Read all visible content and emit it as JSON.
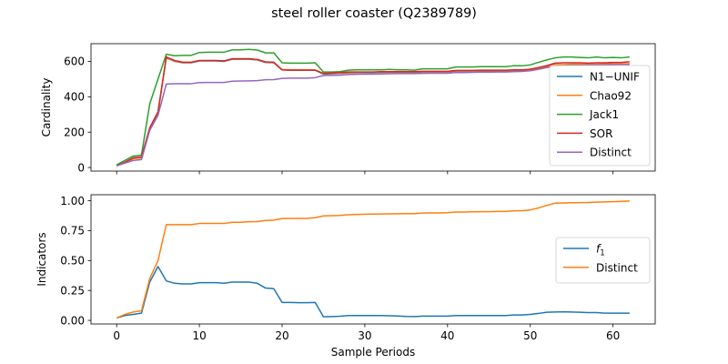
{
  "figure_title": "steel roller coaster (Q2389789)",
  "colors": {
    "blue": "#1f77b4",
    "orange": "#ff7f0e",
    "green": "#2ca02c",
    "red": "#d62728",
    "purple": "#9467bd"
  },
  "chart_data": [
    {
      "type": "line",
      "ylabel": "Cardinality",
      "xlabel": "",
      "xlim": [
        -3.1,
        65.1
      ],
      "ylim": [
        -20,
        700
      ],
      "xticks": [
        0,
        10,
        20,
        30,
        40,
        50,
        60
      ],
      "yticks": [
        0,
        200,
        400,
        600
      ],
      "ytick_labels": [
        "0",
        "200",
        "400",
        "600"
      ],
      "show_xtick_labels": false,
      "grid": false,
      "legend_position": "center-right",
      "x": [
        0,
        1,
        2,
        3,
        4,
        5,
        6,
        7,
        8,
        9,
        10,
        11,
        12,
        13,
        14,
        15,
        16,
        17,
        18,
        19,
        20,
        21,
        22,
        23,
        24,
        25,
        26,
        27,
        28,
        29,
        30,
        31,
        32,
        33,
        34,
        35,
        36,
        37,
        38,
        39,
        40,
        41,
        42,
        43,
        44,
        45,
        46,
        47,
        48,
        49,
        50,
        51,
        52,
        53,
        54,
        55,
        56,
        57,
        58,
        59,
        60,
        61,
        62
      ],
      "series": [
        {
          "name": "N1−UNIF",
          "color": "#1f77b4",
          "values": [
            10,
            30,
            50,
            55,
            220,
            310,
            620,
            600,
            592,
            592,
            602,
            602,
            602,
            600,
            612,
            612,
            612,
            608,
            594,
            592,
            552,
            550,
            550,
            550,
            550,
            528,
            530,
            532,
            535,
            536,
            537,
            537,
            538,
            538,
            538,
            538,
            538,
            540,
            540,
            540,
            540,
            545,
            545,
            545,
            546,
            546,
            546,
            546,
            548,
            548,
            552,
            560,
            570,
            580,
            580,
            582,
            582,
            582,
            582,
            584,
            584,
            584,
            585
          ]
        },
        {
          "name": "Chao92",
          "color": "#ff7f0e",
          "values": [
            10,
            30,
            50,
            55,
            222,
            312,
            622,
            602,
            594,
            594,
            604,
            604,
            604,
            602,
            614,
            614,
            614,
            610,
            596,
            594,
            554,
            552,
            552,
            552,
            552,
            530,
            532,
            534,
            537,
            538,
            539,
            539,
            540,
            540,
            540,
            540,
            540,
            542,
            542,
            542,
            542,
            547,
            547,
            547,
            548,
            548,
            548,
            548,
            550,
            550,
            554,
            562,
            572,
            582,
            582,
            584,
            584,
            584,
            584,
            586,
            586,
            586,
            587
          ]
        },
        {
          "name": "Jack1",
          "color": "#2ca02c",
          "values": [
            15,
            40,
            65,
            70,
            360,
            500,
            640,
            632,
            634,
            634,
            650,
            652,
            652,
            652,
            665,
            665,
            668,
            664,
            648,
            648,
            592,
            590,
            590,
            590,
            592,
            540,
            540,
            542,
            550,
            552,
            552,
            552,
            552,
            555,
            552,
            552,
            550,
            558,
            558,
            558,
            558,
            568,
            568,
            568,
            570,
            570,
            570,
            570,
            575,
            575,
            580,
            595,
            608,
            620,
            625,
            625,
            622,
            620,
            625,
            620,
            622,
            620,
            625
          ]
        },
        {
          "name": "SOR",
          "color": "#d62728",
          "values": [
            10,
            30,
            55,
            60,
            225,
            315,
            625,
            605,
            595,
            595,
            605,
            605,
            605,
            603,
            615,
            615,
            615,
            611,
            597,
            595,
            552,
            550,
            550,
            550,
            550,
            532,
            534,
            536,
            540,
            540,
            540,
            540,
            542,
            542,
            542,
            542,
            542,
            544,
            544,
            544,
            544,
            549,
            549,
            549,
            550,
            550,
            550,
            550,
            552,
            552,
            556,
            565,
            576,
            590,
            592,
            592,
            592,
            590,
            592,
            592,
            594,
            594,
            598
          ]
        },
        {
          "name": "Distinct",
          "color": "#9467bd",
          "values": [
            10,
            25,
            40,
            45,
            210,
            295,
            472,
            474,
            474,
            474,
            480,
            481,
            481,
            481,
            488,
            489,
            490,
            491,
            496,
            497,
            504,
            505,
            505,
            505,
            508,
            520,
            521,
            522,
            526,
            527,
            528,
            528,
            529,
            530,
            531,
            531,
            531,
            532,
            533,
            533,
            533,
            537,
            537,
            538,
            539,
            539,
            540,
            540,
            542,
            543,
            547,
            555,
            565,
            573,
            575,
            577,
            578,
            579,
            580,
            580,
            581,
            582,
            582
          ]
        }
      ]
    },
    {
      "type": "line",
      "ylabel": "Indicators",
      "xlabel": "Sample Periods",
      "xlim": [
        -3.1,
        65.1
      ],
      "ylim": [
        -0.03,
        1.05
      ],
      "xticks": [
        0,
        10,
        20,
        30,
        40,
        50,
        60
      ],
      "xtick_labels": [
        "0",
        "10",
        "20",
        "30",
        "40",
        "50",
        "60"
      ],
      "yticks": [
        0.0,
        0.25,
        0.5,
        0.75,
        1.0
      ],
      "ytick_labels": [
        "0.00",
        "0.25",
        "0.50",
        "0.75",
        "1.00"
      ],
      "grid": false,
      "legend_position": "center-right",
      "x": [
        0,
        1,
        2,
        3,
        4,
        5,
        6,
        7,
        8,
        9,
        10,
        11,
        12,
        13,
        14,
        15,
        16,
        17,
        18,
        19,
        20,
        21,
        22,
        23,
        24,
        25,
        26,
        27,
        28,
        29,
        30,
        31,
        32,
        33,
        34,
        35,
        36,
        37,
        38,
        39,
        40,
        41,
        42,
        43,
        44,
        45,
        46,
        47,
        48,
        49,
        50,
        51,
        52,
        53,
        54,
        55,
        56,
        57,
        58,
        59,
        60,
        61,
        62
      ],
      "series": [
        {
          "name": "f1",
          "color": "#1f77b4",
          "values": [
            0.02,
            0.04,
            0.05,
            0.06,
            0.32,
            0.45,
            0.33,
            0.31,
            0.305,
            0.305,
            0.315,
            0.315,
            0.315,
            0.31,
            0.32,
            0.32,
            0.32,
            0.31,
            0.27,
            0.265,
            0.15,
            0.15,
            0.148,
            0.148,
            0.15,
            0.03,
            0.032,
            0.035,
            0.04,
            0.04,
            0.04,
            0.04,
            0.04,
            0.038,
            0.037,
            0.033,
            0.032,
            0.036,
            0.036,
            0.036,
            0.036,
            0.04,
            0.04,
            0.04,
            0.04,
            0.04,
            0.04,
            0.04,
            0.045,
            0.045,
            0.05,
            0.058,
            0.068,
            0.07,
            0.072,
            0.07,
            0.068,
            0.065,
            0.065,
            0.06,
            0.06,
            0.06,
            0.06
          ]
        },
        {
          "name": "Distinct",
          "color": "#ff7f0e",
          "values": [
            0.02,
            0.05,
            0.07,
            0.08,
            0.35,
            0.5,
            0.8,
            0.8,
            0.8,
            0.8,
            0.81,
            0.81,
            0.81,
            0.81,
            0.82,
            0.82,
            0.825,
            0.826,
            0.835,
            0.838,
            0.85,
            0.852,
            0.852,
            0.852,
            0.858,
            0.873,
            0.875,
            0.877,
            0.883,
            0.885,
            0.887,
            0.888,
            0.889,
            0.89,
            0.891,
            0.892,
            0.892,
            0.897,
            0.898,
            0.898,
            0.9,
            0.905,
            0.905,
            0.907,
            0.908,
            0.908,
            0.91,
            0.91,
            0.915,
            0.917,
            0.923,
            0.94,
            0.96,
            0.98,
            0.982,
            0.983,
            0.984,
            0.985,
            0.988,
            0.99,
            0.992,
            0.995,
            0.998
          ]
        }
      ]
    }
  ]
}
